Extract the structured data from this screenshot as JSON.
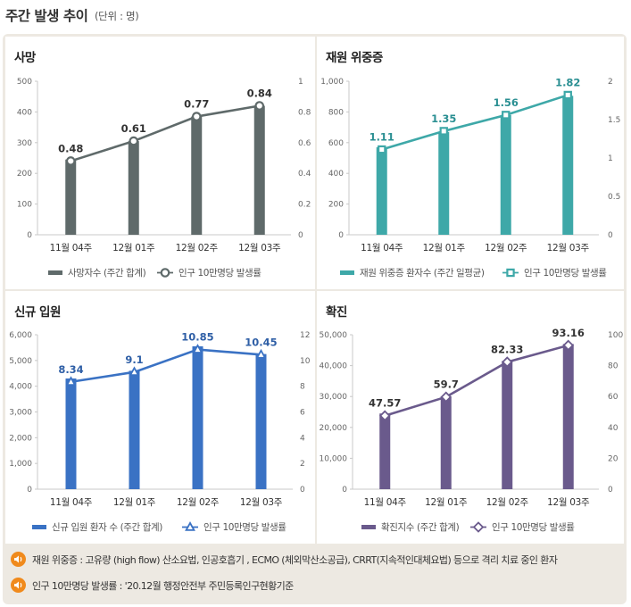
{
  "page": {
    "title": "주간 발생 추이",
    "unit": "(단위 : 명)"
  },
  "chart_data": [
    {
      "type": "bar",
      "panel": "사망",
      "title": "사망",
      "categories": [
        "11월 04주",
        "12월 01주",
        "12월 02주",
        "12월 03주"
      ],
      "bar_series": {
        "name": "사망자수 (주간 합계)",
        "values": [
          245,
          305,
          385,
          420
        ],
        "color": "#5f6a6a"
      },
      "line_series": {
        "name": "인구 10만명당 발생률",
        "values": [
          0.48,
          0.61,
          0.77,
          0.84
        ],
        "labels": [
          "0.48",
          "0.61",
          "0.77",
          "0.84"
        ],
        "color": "#5f6a6a",
        "marker": "circle",
        "label_color": "#333333"
      },
      "left_axis": {
        "min": 0,
        "max": 500,
        "ticks": [
          "0",
          "100",
          "200",
          "300",
          "400",
          "500"
        ]
      },
      "right_axis": {
        "min": 0,
        "max": 1,
        "ticks": [
          "0",
          "0.2",
          "0.4",
          "0.6",
          "0.8",
          "1"
        ]
      }
    },
    {
      "type": "bar",
      "panel": "재원 위중증",
      "title": "재원 위중증",
      "categories": [
        "11월 04주",
        "12월 01주",
        "12월 02주",
        "12월 03주"
      ],
      "bar_series": {
        "name": "재원 위중증 환자수 (주간 일평균)",
        "values": [
          570,
          670,
          780,
          905
        ],
        "color": "#3ea8a8"
      },
      "line_series": {
        "name": "인구 10만명당 발생률",
        "values": [
          1.11,
          1.35,
          1.56,
          1.82
        ],
        "labels": [
          "1.11",
          "1.35",
          "1.56",
          "1.82"
        ],
        "color": "#3ea8a8",
        "marker": "square",
        "label_color": "#2a8f92"
      },
      "left_axis": {
        "min": 0,
        "max": 1000,
        "ticks": [
          "0",
          "200",
          "400",
          "600",
          "800",
          "1,000"
        ]
      },
      "right_axis": {
        "min": 0,
        "max": 2,
        "ticks": [
          "0",
          "0.5",
          "1",
          "1.5",
          "2"
        ]
      }
    },
    {
      "type": "bar",
      "panel": "신규 입원",
      "title": "신규 입원",
      "categories": [
        "11월 04주",
        "12월 01주",
        "12월 02주",
        "12월 03주"
      ],
      "bar_series": {
        "name": "신규 입원 환자 수 (주간 합계)",
        "values": [
          4300,
          4600,
          5550,
          5250
        ],
        "color": "#3a72c4"
      },
      "line_series": {
        "name": "인구 10만명당 발생률",
        "values": [
          8.34,
          9.1,
          10.85,
          10.45
        ],
        "labels": [
          "8.34",
          "9.1",
          "10.85",
          "10.45"
        ],
        "color": "#3a72c4",
        "marker": "triangle",
        "label_color": "#2f5fa6"
      },
      "left_axis": {
        "min": 0,
        "max": 6000,
        "ticks": [
          "0",
          "1,000",
          "2,000",
          "3,000",
          "4,000",
          "5,000",
          "6,000"
        ]
      },
      "right_axis": {
        "min": 0,
        "max": 12,
        "ticks": [
          "0",
          "2",
          "4",
          "6",
          "8",
          "10",
          "12"
        ]
      }
    },
    {
      "type": "bar",
      "panel": "확진",
      "title": "확진",
      "categories": [
        "11월 04주",
        "12월 01주",
        "12월 02주",
        "12월 03주"
      ],
      "bar_series": {
        "name": "확진지수 (주간 합계)",
        "values": [
          24500,
          30000,
          41500,
          47000
        ],
        "color": "#6a5a8c"
      },
      "line_series": {
        "name": "인구 10만명당 발생률",
        "values": [
          47.57,
          59.7,
          82.33,
          93.16
        ],
        "labels": [
          "47.57",
          "59.7",
          "82.33",
          "93.16"
        ],
        "color": "#6a5a8c",
        "marker": "diamond",
        "label_color": "#333333"
      },
      "left_axis": {
        "min": 0,
        "max": 50000,
        "ticks": [
          "0",
          "10,000",
          "20,000",
          "30,000",
          "40,000",
          "50,000"
        ]
      },
      "right_axis": {
        "min": 0,
        "max": 100,
        "ticks": [
          "0",
          "20",
          "40",
          "60",
          "80",
          "100"
        ]
      }
    }
  ],
  "notes": [
    {
      "icon": "speaker-icon",
      "text": "재원 위중증 : 고유량 (high flow) 산소요법, 인공호흡기 , ECMO (체외막산소공급), CRRT(지속적인대체요법) 등으로 격리 치료 중인 환자"
    },
    {
      "icon": "speaker-icon",
      "text": "인구 10만명당 발생률 : '20.12월 행정안전부 주민등록인구현황기준"
    }
  ]
}
